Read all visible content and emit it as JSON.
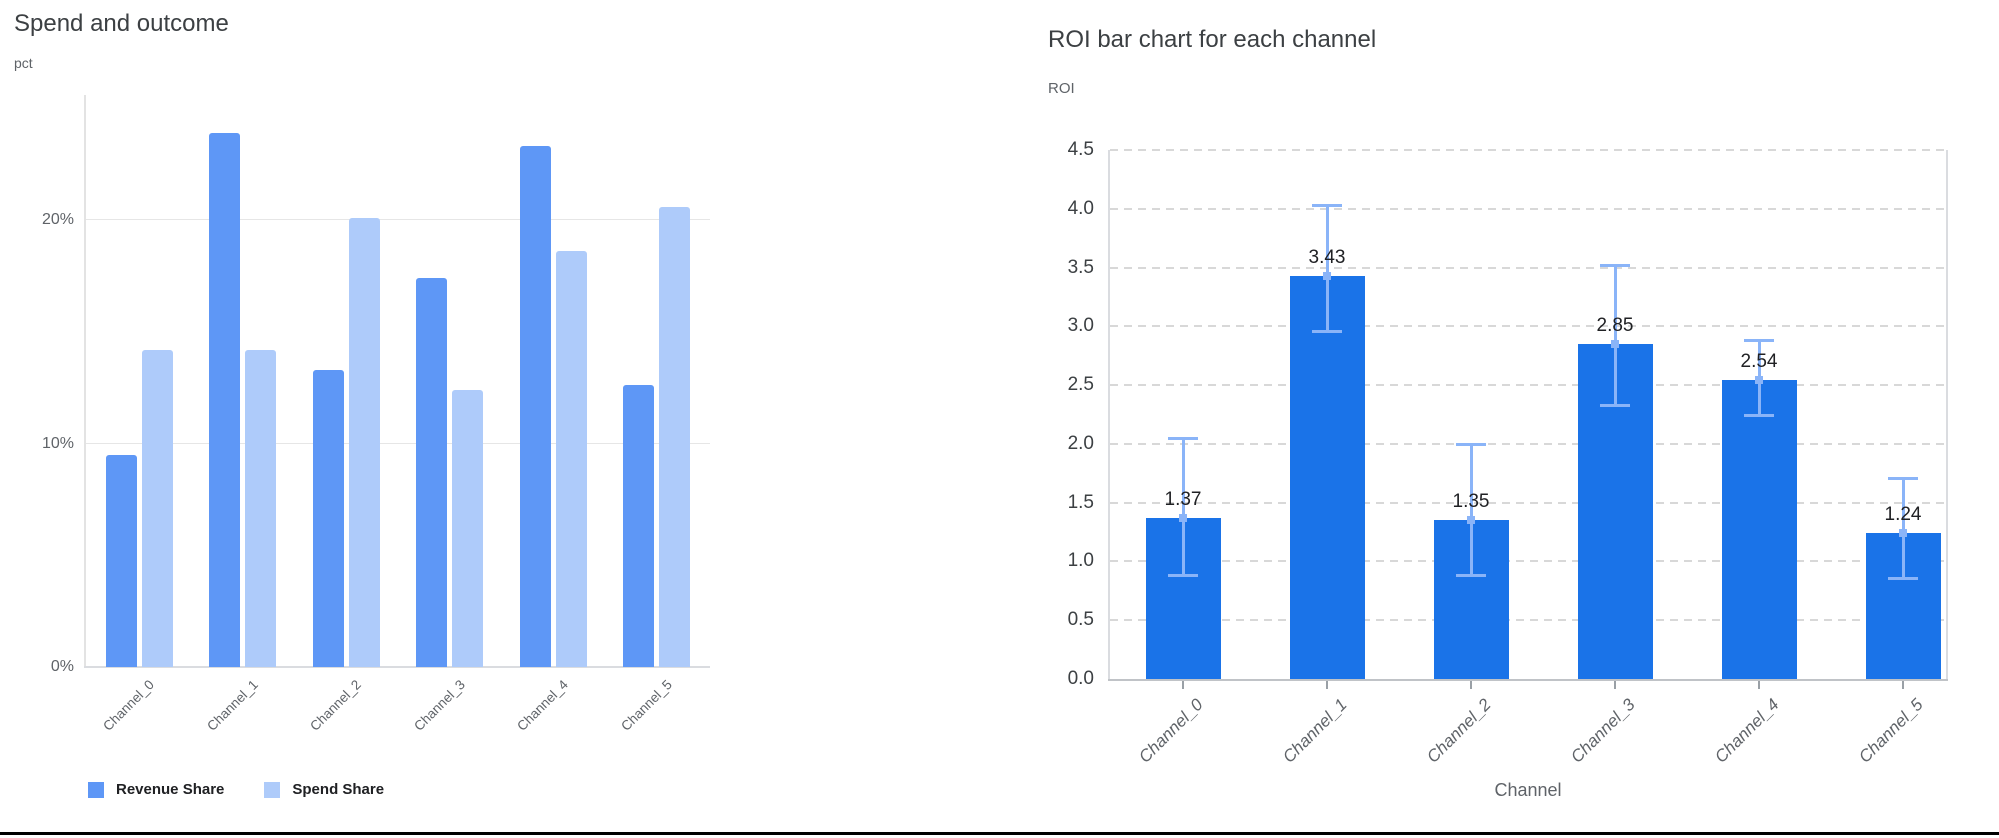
{
  "page": {
    "background": "#ffffff",
    "bottom_border_color": "#000000"
  },
  "chart_data": [
    {
      "type": "bar",
      "title": "Spend and outcome",
      "ylabel": "pct",
      "xlabel": "",
      "categories": [
        "Channel_0",
        "Channel_1",
        "Channel_2",
        "Channel_3",
        "Channel_4",
        "Channel_5"
      ],
      "series": [
        {
          "name": "Revenue Share",
          "color": "#5e97f6",
          "values": [
            9.5,
            23.9,
            13.3,
            17.4,
            23.3,
            12.6
          ]
        },
        {
          "name": "Spend Share",
          "color": "#aecbfa",
          "values": [
            14.2,
            14.2,
            20.1,
            12.4,
            18.6,
            20.6
          ]
        }
      ],
      "unit": "%",
      "ytick_values": [
        0,
        10,
        20
      ],
      "ytick_labels": [
        "0%",
        "10%",
        "20%"
      ],
      "ylim": [
        0,
        25.6
      ],
      "grid": "solid",
      "gridline_color": "#e6e6e6",
      "legend_position": "bottom-left"
    },
    {
      "type": "bar",
      "title": "ROI bar chart for each channel",
      "ylabel": "ROI",
      "xlabel": "Channel",
      "categories": [
        "Channel_0",
        "Channel_1",
        "Channel_2",
        "Channel_3",
        "Channel_4",
        "Channel_5"
      ],
      "values": [
        1.37,
        3.43,
        1.35,
        2.85,
        2.54,
        1.24
      ],
      "value_labels": [
        "1.37",
        "3.43",
        "1.35",
        "2.85",
        "2.54",
        "1.24"
      ],
      "error_low": [
        0.88,
        2.95,
        0.88,
        2.32,
        2.24,
        0.85
      ],
      "error_high": [
        2.05,
        4.03,
        2.0,
        3.52,
        2.88,
        1.71
      ],
      "bar_color": "#1a73e8",
      "error_color": "#8ab4f8",
      "ylim": [
        0,
        4.5
      ],
      "ytick_step": 0.5,
      "grid": "dashed",
      "gridline_color": "#d8d8d8",
      "legend_position": "none"
    }
  ]
}
